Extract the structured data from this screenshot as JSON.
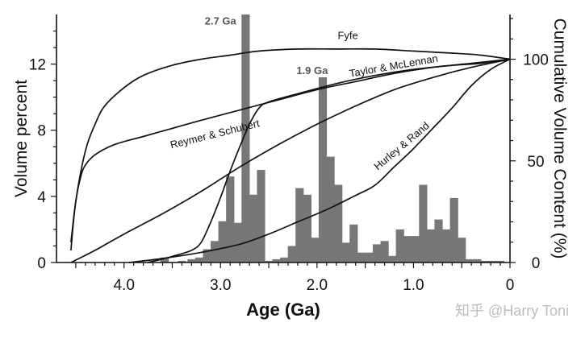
{
  "chart_data": {
    "type": "bar",
    "xlabel": "Age (Ga)",
    "ylabel_left": "Volume percent",
    "ylabel_right": "Cumulative Volume Content (%)",
    "xlim": [
      4.7,
      0
    ],
    "ylim_left": [
      0,
      15
    ],
    "ylim_right": [
      0,
      122
    ],
    "x_ticks": [
      {
        "v": 4.0,
        "label": "4.0"
      },
      {
        "v": 3.0,
        "label": "3.0"
      },
      {
        "v": 2.0,
        "label": "2.0"
      },
      {
        "v": 1.0,
        "label": "1.0"
      },
      {
        "v": 0,
        "label": "0"
      }
    ],
    "y_ticks_left": [
      {
        "v": 0,
        "label": "0"
      },
      {
        "v": 4,
        "label": "4"
      },
      {
        "v": 8,
        "label": "8"
      },
      {
        "v": 12,
        "label": "12"
      }
    ],
    "y_ticks_right": [
      {
        "v": 0,
        "label": "0"
      },
      {
        "v": 50,
        "label": "50"
      },
      {
        "v": 100,
        "label": "100"
      }
    ],
    "bars": {
      "name": "Volume percent",
      "color": "#777777",
      "width": 0.085,
      "x": [
        3.58,
        3.4,
        3.3,
        3.22,
        3.14,
        3.06,
        2.98,
        2.9,
        2.82,
        2.74,
        2.66,
        2.58,
        2.5,
        2.42,
        2.34,
        2.26,
        2.18,
        2.1,
        2.02,
        1.94,
        1.86,
        1.78,
        1.7,
        1.62,
        1.54,
        1.46,
        1.38,
        1.3,
        1.22,
        1.14,
        1.06,
        0.98,
        0.9,
        0.82,
        0.74,
        0.66,
        0.58,
        0.5,
        0.42,
        0.34,
        0.26,
        0.18,
        0.1
      ],
      "values": [
        0.3,
        0.1,
        0.2,
        0.3,
        0.8,
        1.3,
        2.5,
        5.2,
        2.4,
        15.0,
        4.1,
        5.6,
        0.1,
        0.2,
        0.3,
        1.0,
        4.5,
        4.1,
        1.5,
        11.2,
        6.4,
        4.7,
        1.2,
        2.3,
        0.6,
        0.6,
        1.1,
        1.3,
        0.4,
        2.0,
        1.6,
        1.6,
        4.7,
        2.0,
        2.6,
        2.0,
        3.9,
        1.5,
        0.2,
        0.2,
        0.1,
        0.1,
        0.1
      ]
    },
    "curves": [
      {
        "name": "Fyfe",
        "axis": "right",
        "x": [
          4.55,
          4.5,
          4.4,
          4.3,
          4.2,
          4.0,
          3.8,
          3.5,
          3.2,
          2.9,
          2.6,
          2.2,
          1.8,
          1.4,
          1.0,
          0.6,
          0.3,
          0.0
        ],
        "y": [
          6,
          30,
          55,
          68,
          77,
          86,
          92,
          97,
          100,
          102,
          104,
          105,
          105,
          105,
          104,
          103,
          102,
          100
        ]
      },
      {
        "name": "Reymer & Schubert",
        "axis": "right",
        "x": [
          4.55,
          4.5,
          4.45,
          4.4,
          4.3,
          4.1,
          3.8,
          3.5,
          3.2,
          2.8,
          2.4,
          2.0,
          1.6,
          1.2,
          0.8,
          0.4,
          0.0
        ],
        "y": [
          10,
          30,
          42,
          48,
          53,
          58,
          62,
          66,
          70,
          75,
          80,
          85,
          89,
          93,
          96,
          98,
          100
        ]
      },
      {
        "name": "Taylor & McLennan",
        "axis": "right",
        "x": [
          3.75,
          3.5,
          3.3,
          3.2,
          3.1,
          3.0,
          2.9,
          2.8,
          2.7,
          2.6,
          2.5,
          2.2,
          1.8,
          1.4,
          1.0,
          0.6,
          0.3,
          0.0
        ],
        "y": [
          0,
          3,
          6,
          10,
          20,
          32,
          45,
          57,
          68,
          76,
          79,
          83,
          88,
          92,
          95,
          97,
          98,
          100
        ]
      },
      {
        "name": "Hurley & Rand",
        "axis": "right",
        "x": [
          3.95,
          3.6,
          3.2,
          2.8,
          2.5,
          2.2,
          1.9,
          1.6,
          1.4,
          1.2,
          1.0,
          0.8,
          0.6,
          0.4,
          0.2,
          0.0
        ],
        "y": [
          0,
          2,
          5,
          9,
          14,
          20,
          26,
          33,
          38,
          47,
          56,
          66,
          76,
          87,
          95,
          100
        ]
      },
      {
        "name": "",
        "axis": "right",
        "x": [
          4.55,
          4.3,
          4.0,
          3.6,
          3.2,
          2.8,
          2.4,
          2.0,
          1.6,
          1.2,
          0.8,
          0.4,
          0.0
        ],
        "y": [
          0,
          6,
          14,
          24,
          35,
          47,
          58,
          68,
          77,
          85,
          91,
          96,
          100
        ]
      }
    ],
    "curve_labels": [
      {
        "text": "Fyfe",
        "x": 1.68,
        "y": 110,
        "angle": 0
      },
      {
        "text": "Taylor & McLennan",
        "x": 1.2,
        "y": 95,
        "angle": -10
      },
      {
        "text": "Reymer & Schubert",
        "x": 3.05,
        "y": 61.5,
        "angle": -14
      },
      {
        "text": "Hurley & Rand",
        "x": 1.1,
        "y": 56,
        "angle": -40
      }
    ],
    "bar_labels": [
      {
        "text": "2.7 Ga",
        "x": 3.0,
        "y": 14.4
      },
      {
        "text": "1.9 Ga",
        "x": 2.05,
        "y": 11.4
      }
    ]
  },
  "watermark": "知乎 @Harry Toni"
}
